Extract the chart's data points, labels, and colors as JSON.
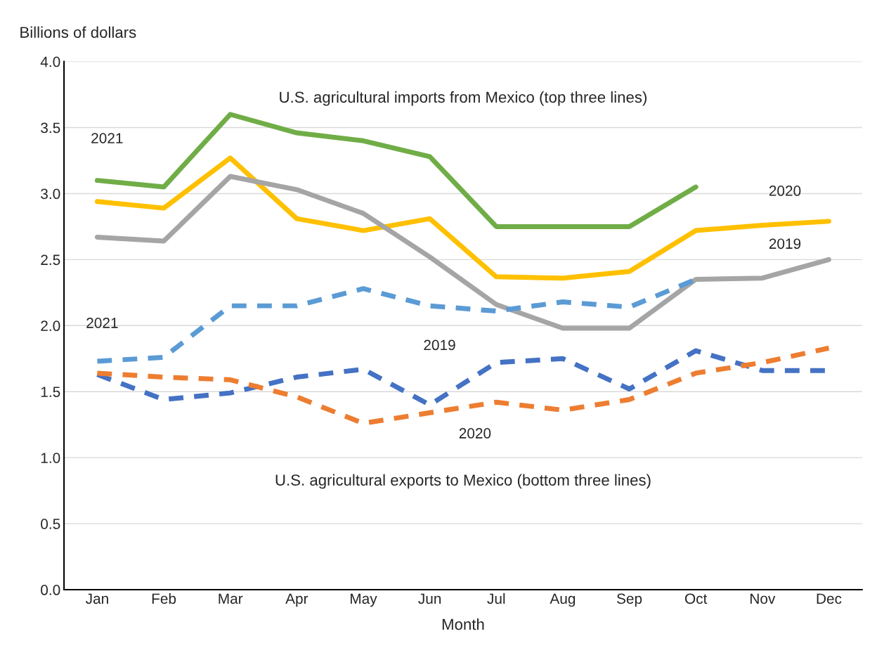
{
  "chart_data": {
    "type": "line",
    "xlabel": "Month",
    "ylabel": "Billions of dollars",
    "categories": [
      "Jan",
      "Feb",
      "Mar",
      "Apr",
      "May",
      "Jun",
      "Jul",
      "Aug",
      "Sep",
      "Oct",
      "Nov",
      "Dec"
    ],
    "ylim": [
      0,
      4
    ],
    "yticks": [
      {
        "value": 0,
        "label": "0.0"
      },
      {
        "value": 0.5,
        "label": "0.5"
      },
      {
        "value": 1,
        "label": "1.0"
      },
      {
        "value": 1.5,
        "label": "1.5"
      },
      {
        "value": 2,
        "label": "2.0"
      },
      {
        "value": 2.5,
        "label": "2.5"
      },
      {
        "value": 3,
        "label": "3.0"
      },
      {
        "value": 3.5,
        "label": "3.5"
      },
      {
        "value": 4,
        "label": "4.0"
      }
    ],
    "grid": "y",
    "legend": false,
    "marker": "none",
    "series": [
      {
        "name": "2021",
        "color": "#70ad47",
        "line_style": "solid",
        "values": [
          3.1,
          3.05,
          3.6,
          3.46,
          3.4,
          3.28,
          2.75,
          2.75,
          2.75,
          3.05,
          null,
          null
        ]
      },
      {
        "name": "2020",
        "color": "#ffc000",
        "line_style": "solid",
        "values": [
          2.94,
          2.89,
          3.27,
          2.81,
          2.72,
          2.81,
          2.37,
          2.36,
          2.41,
          2.72,
          2.76,
          2.79
        ]
      },
      {
        "name": "2019",
        "color": "#a5a5a5",
        "line_style": "solid",
        "values": [
          2.67,
          2.64,
          3.13,
          3.03,
          2.85,
          2.52,
          2.16,
          1.98,
          1.98,
          2.35,
          2.36,
          2.5
        ]
      },
      {
        "name": "2021",
        "color": "#5b9bd5",
        "line_style": "dashed",
        "values": [
          1.73,
          1.76,
          2.15,
          2.15,
          2.28,
          2.15,
          2.11,
          2.18,
          2.14,
          2.35,
          null,
          null
        ]
      },
      {
        "name": "2019",
        "color": "#4472c4",
        "line_style": "dashed",
        "values": [
          1.63,
          1.44,
          1.49,
          1.61,
          1.67,
          1.4,
          1.72,
          1.75,
          1.52,
          1.81,
          1.66,
          1.66
        ]
      },
      {
        "name": "2020",
        "color": "#ed7d31",
        "line_style": "dashed",
        "values": [
          1.64,
          1.61,
          1.59,
          1.46,
          1.26,
          1.34,
          1.42,
          1.36,
          1.44,
          1.64,
          1.72,
          1.83
        ]
      }
    ],
    "annotations": [
      "U.S. agricultural imports from Mexico (top three lines)",
      "U.S. agricultural exports to Mexico (bottom three lines)"
    ]
  }
}
